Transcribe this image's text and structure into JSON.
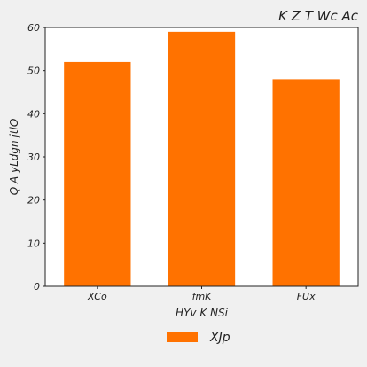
{
  "chart_data": {
    "type": "bar",
    "title": "K Z  T  Wc Ac",
    "xlabel": "HYv  K NSi",
    "ylabel": "Q A yLdgn jtlO",
    "categories": [
      "XCo",
      "fmK",
      "FUx"
    ],
    "series": [
      {
        "name": "XJp",
        "values": [
          52,
          59,
          48
        ],
        "color": "#ff7200"
      }
    ],
    "ylim": [
      0,
      60
    ],
    "yticks": [
      0,
      10,
      20,
      30,
      40,
      50,
      60
    ],
    "grid": false,
    "legend": "bottom-center",
    "background": "#f0f0f0",
    "plot_background": "#ffffff"
  }
}
